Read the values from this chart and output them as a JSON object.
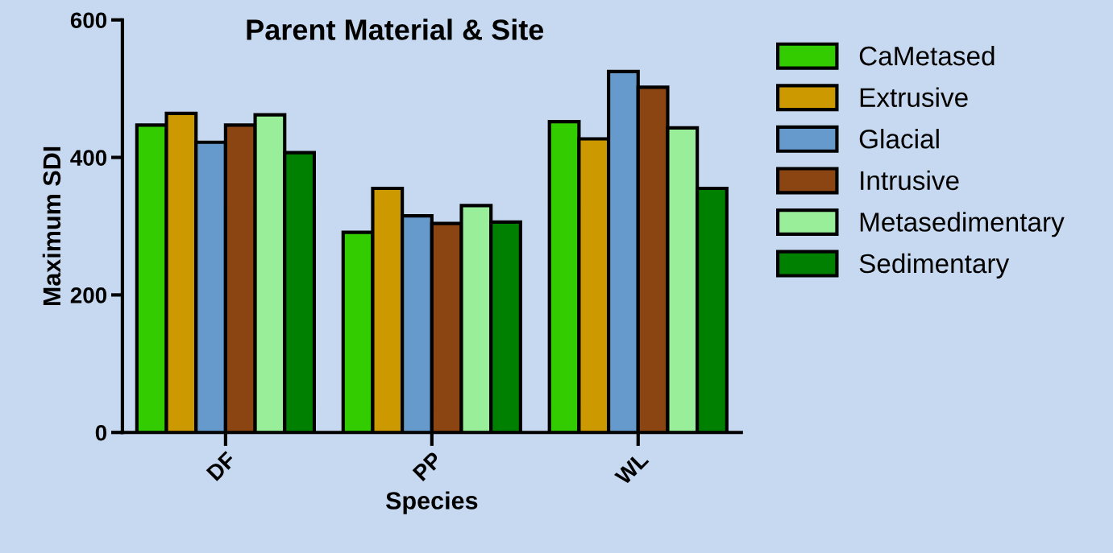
{
  "chart_data": {
    "type": "bar",
    "title": "Parent Material & Site",
    "xlabel": "Species",
    "ylabel": "Maximum SDI",
    "categories": [
      "DF",
      "PP",
      "WL"
    ],
    "series": [
      {
        "name": "CaMetased",
        "color": "#33cc00",
        "values": [
          447,
          291,
          452
        ]
      },
      {
        "name": "Extrusive",
        "color": "#cc9900",
        "values": [
          464,
          355,
          427
        ]
      },
      {
        "name": "Glacial",
        "color": "#6699cc",
        "values": [
          422,
          315,
          525
        ]
      },
      {
        "name": "Intrusive",
        "color": "#8b4513",
        "values": [
          447,
          304,
          502
        ]
      },
      {
        "name": "Metasedimentary",
        "color": "#99ee99",
        "values": [
          462,
          330,
          443
        ]
      },
      {
        "name": "Sedimentary",
        "color": "#008000",
        "values": [
          407,
          306,
          355
        ]
      }
    ],
    "ylim": [
      0,
      600
    ],
    "yticks": [
      0,
      200,
      400,
      600
    ],
    "grid": false,
    "legend": "right"
  }
}
